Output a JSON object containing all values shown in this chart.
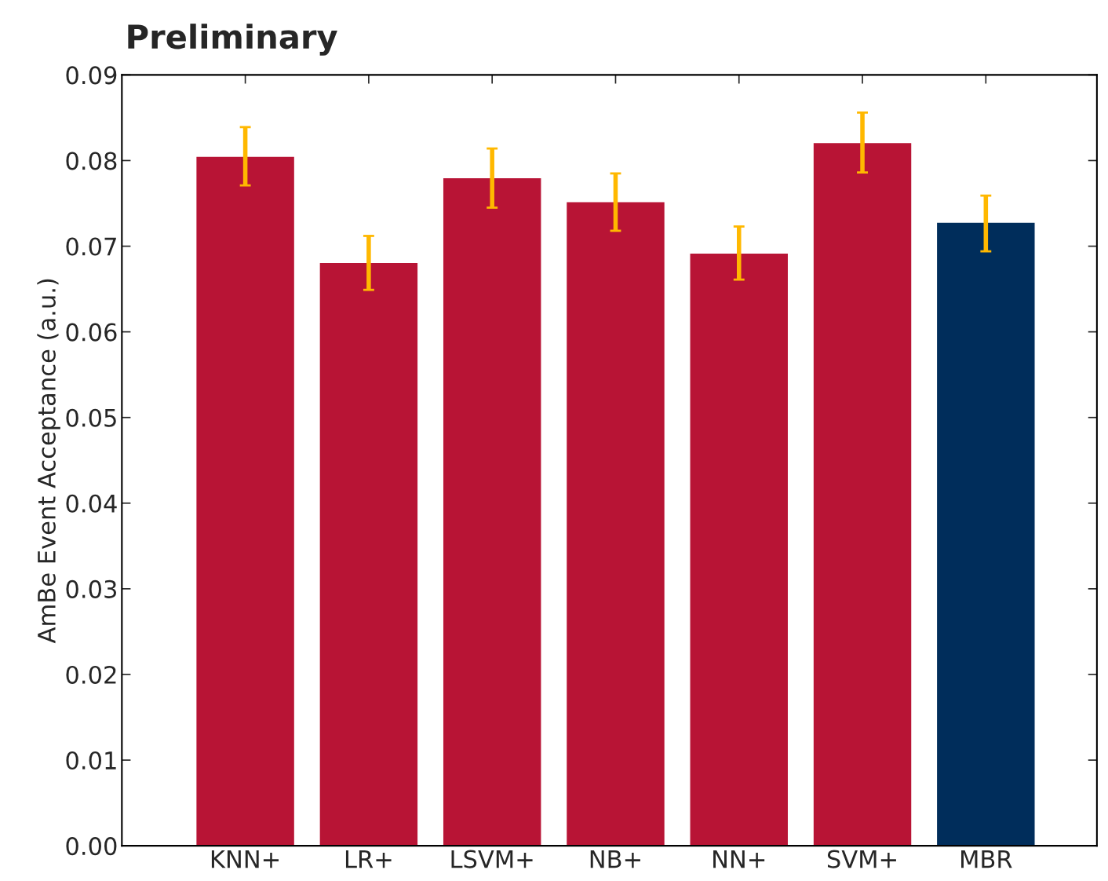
{
  "chart_data": {
    "type": "bar",
    "title": "Preliminary",
    "ylabel": "AmBe Event Acceptance (a.u.)",
    "categories": [
      "KNN+",
      "LR+",
      "LSVM+",
      "NB+",
      "NN+",
      "SVM+",
      "MBR"
    ],
    "values": [
      0.0805,
      0.0681,
      0.078,
      0.0752,
      0.0692,
      0.0821,
      0.0728
    ],
    "colors": [
      "#b81435",
      "#b81435",
      "#b81435",
      "#b81435",
      "#b81435",
      "#b81435",
      "#002d5b"
    ],
    "errors": [
      [
        0.0771,
        0.0839
      ],
      [
        0.0649,
        0.0712
      ],
      [
        0.0745,
        0.0814
      ],
      [
        0.0718,
        0.0785
      ],
      [
        0.0661,
        0.0723
      ],
      [
        0.0786,
        0.0856
      ],
      [
        0.0694,
        0.0759
      ]
    ],
    "ylim": [
      0,
      0.09
    ],
    "yticks": [
      {
        "value": 0,
        "label": "0.00"
      },
      {
        "value": 0.01,
        "label": "0.01"
      },
      {
        "value": 0.02,
        "label": "0.02"
      },
      {
        "value": 0.03,
        "label": "0.03"
      },
      {
        "value": 0.04,
        "label": "0.04"
      },
      {
        "value": 0.05,
        "label": "0.05"
      },
      {
        "value": 0.06,
        "label": "0.06"
      },
      {
        "value": 0.07,
        "label": "0.07"
      },
      {
        "value": 0.08,
        "label": "0.08"
      },
      {
        "value": 0.09,
        "label": "0.09"
      }
    ],
    "grid": false,
    "legend": false
  }
}
